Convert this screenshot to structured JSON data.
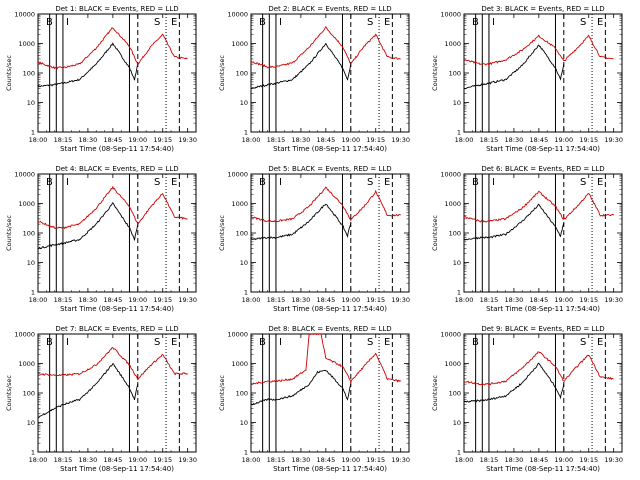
{
  "figure": {
    "ylabel": "Counts/sec",
    "xlabel": "Start Time (08-Sep-11 17:54:40)",
    "x_ticks": [
      "18:00",
      "18:15",
      "18:30",
      "18:45",
      "19:00",
      "19:15",
      "19:30"
    ],
    "y_ticks": [
      "1",
      "10",
      "100",
      "1000",
      "10000"
    ],
    "markers": [
      "B",
      "I",
      "S",
      "E"
    ],
    "colors": {
      "events": "#000000",
      "lld": "#cc0000",
      "background": "#ffffff"
    }
  },
  "chart_data": [
    {
      "type": "line",
      "title": "Det 1: BLACK = Events, RED = LLD",
      "xlim": [
        "18:00",
        "19:35"
      ],
      "ylim": [
        1,
        10000
      ],
      "yscale": "log",
      "series": [
        {
          "name": "BLACK = Events",
          "x": [
            "18:00",
            "18:10",
            "18:15",
            "18:25",
            "18:35",
            "18:45",
            "18:55",
            "18:58",
            "19:00"
          ],
          "values": [
            35,
            40,
            45,
            60,
            200,
            1000,
            150,
            60,
            200
          ]
        },
        {
          "name": "RED = LLD",
          "x": [
            "18:00",
            "18:10",
            "18:15",
            "18:25",
            "18:35",
            "18:45",
            "18:55",
            "19:00",
            "19:08",
            "19:15",
            "19:22",
            "19:30"
          ],
          "values": [
            230,
            150,
            150,
            200,
            700,
            3500,
            800,
            200,
            800,
            2000,
            350,
            300
          ]
        }
      ],
      "vlines_solid": [
        "18:07",
        "18:11",
        "18:15",
        "18:55"
      ],
      "vlines_dashed": [
        "19:00",
        "19:25"
      ],
      "vlines_dotted": [
        "19:17"
      ]
    },
    {
      "type": "line",
      "title": "Det 2: BLACK = Events, RED = LLD",
      "xlim": [
        "18:00",
        "19:35"
      ],
      "ylim": [
        1,
        10000
      ],
      "yscale": "log",
      "series": [
        {
          "name": "BLACK = Events",
          "x": [
            "18:00",
            "18:10",
            "18:15",
            "18:25",
            "18:35",
            "18:45",
            "18:55",
            "18:58",
            "19:00"
          ],
          "values": [
            30,
            40,
            45,
            60,
            200,
            1000,
            150,
            60,
            200
          ]
        },
        {
          "name": "RED = LLD",
          "x": [
            "18:00",
            "18:10",
            "18:15",
            "18:25",
            "18:35",
            "18:45",
            "18:55",
            "19:00",
            "19:08",
            "19:15",
            "19:22",
            "19:30"
          ],
          "values": [
            250,
            160,
            160,
            220,
            750,
            3500,
            800,
            200,
            800,
            2000,
            350,
            300
          ]
        }
      ],
      "vlines_solid": [
        "18:07",
        "18:11",
        "18:15",
        "18:55"
      ],
      "vlines_dashed": [
        "19:00",
        "19:25"
      ],
      "vlines_dotted": [
        "19:17"
      ]
    },
    {
      "type": "line",
      "title": "Det 3: BLACK = Events, RED = LLD",
      "xlim": [
        "18:00",
        "19:35"
      ],
      "ylim": [
        1,
        10000
      ],
      "yscale": "log",
      "series": [
        {
          "name": "BLACK = Events",
          "x": [
            "18:00",
            "18:10",
            "18:15",
            "18:25",
            "18:35",
            "18:45",
            "18:55",
            "18:58",
            "19:00"
          ],
          "values": [
            30,
            40,
            45,
            60,
            180,
            900,
            150,
            60,
            200
          ]
        },
        {
          "name": "RED = LLD",
          "x": [
            "18:00",
            "18:10",
            "18:15",
            "18:25",
            "18:35",
            "18:45",
            "18:55",
            "19:00",
            "19:08",
            "19:15",
            "19:22",
            "19:30"
          ],
          "values": [
            280,
            200,
            200,
            280,
            600,
            1800,
            700,
            250,
            700,
            1800,
            350,
            300
          ]
        }
      ],
      "vlines_solid": [
        "18:07",
        "18:11",
        "18:15",
        "18:55"
      ],
      "vlines_dashed": [
        "19:00",
        "19:25"
      ],
      "vlines_dotted": [
        "19:17"
      ]
    },
    {
      "type": "line",
      "title": "Det 4: BLACK = Events, RED = LLD",
      "xlim": [
        "18:00",
        "19:35"
      ],
      "ylim": [
        1,
        10000
      ],
      "yscale": "log",
      "series": [
        {
          "name": "BLACK = Events",
          "x": [
            "18:00",
            "18:10",
            "18:15",
            "18:25",
            "18:35",
            "18:45",
            "18:55",
            "18:58",
            "19:00"
          ],
          "values": [
            30,
            40,
            45,
            60,
            200,
            1000,
            150,
            60,
            200
          ]
        },
        {
          "name": "RED = LLD",
          "x": [
            "18:00",
            "18:10",
            "18:15",
            "18:25",
            "18:35",
            "18:45",
            "18:55",
            "19:00",
            "19:08",
            "19:15",
            "19:22",
            "19:30"
          ],
          "values": [
            250,
            150,
            150,
            200,
            700,
            3500,
            800,
            200,
            800,
            2200,
            350,
            300
          ]
        }
      ],
      "vlines_solid": [
        "18:07",
        "18:11",
        "18:15",
        "18:55"
      ],
      "vlines_dashed": [
        "19:00",
        "19:25"
      ],
      "vlines_dotted": [
        "19:17"
      ]
    },
    {
      "type": "line",
      "title": "Det 5: BLACK = Events, RED = LLD",
      "xlim": [
        "18:00",
        "19:35"
      ],
      "ylim": [
        1,
        10000
      ],
      "yscale": "log",
      "series": [
        {
          "name": "BLACK = Events",
          "x": [
            "18:00",
            "18:10",
            "18:15",
            "18:25",
            "18:35",
            "18:45",
            "18:55",
            "18:58",
            "19:00"
          ],
          "values": [
            60,
            70,
            70,
            90,
            250,
            1000,
            180,
            80,
            220
          ]
        },
        {
          "name": "RED = LLD",
          "x": [
            "18:00",
            "18:10",
            "18:15",
            "18:25",
            "18:35",
            "18:45",
            "18:55",
            "19:00",
            "19:08",
            "19:15",
            "19:22",
            "19:30"
          ],
          "values": [
            350,
            250,
            250,
            300,
            800,
            3500,
            900,
            280,
            800,
            2500,
            400,
            400
          ]
        }
      ],
      "vlines_solid": [
        "18:07",
        "18:11",
        "18:15",
        "18:55"
      ],
      "vlines_dashed": [
        "19:00",
        "19:25"
      ],
      "vlines_dotted": [
        "19:17"
      ]
    },
    {
      "type": "line",
      "title": "Det 6: BLACK = Events, RED = LLD",
      "xlim": [
        "18:00",
        "19:35"
      ],
      "ylim": [
        1,
        10000
      ],
      "yscale": "log",
      "series": [
        {
          "name": "BLACK = Events",
          "x": [
            "18:00",
            "18:10",
            "18:15",
            "18:25",
            "18:35",
            "18:45",
            "18:55",
            "18:58",
            "19:00"
          ],
          "values": [
            60,
            70,
            70,
            90,
            250,
            900,
            160,
            80,
            220
          ]
        },
        {
          "name": "RED = LLD",
          "x": [
            "18:00",
            "18:10",
            "18:15",
            "18:25",
            "18:35",
            "18:45",
            "18:55",
            "19:00",
            "19:08",
            "19:15",
            "19:22",
            "19:30"
          ],
          "values": [
            350,
            250,
            250,
            300,
            700,
            2500,
            800,
            280,
            800,
            2200,
            400,
            400
          ]
        }
      ],
      "vlines_solid": [
        "18:07",
        "18:11",
        "18:15",
        "18:55"
      ],
      "vlines_dashed": [
        "19:00",
        "19:25"
      ],
      "vlines_dotted": [
        "19:17"
      ]
    },
    {
      "type": "line",
      "title": "Det 7: BLACK = Events, RED = LLD",
      "xlim": [
        "18:00",
        "19:35"
      ],
      "ylim": [
        1,
        10000
      ],
      "yscale": "log",
      "series": [
        {
          "name": "BLACK = Events",
          "x": [
            "18:00",
            "18:10",
            "18:15",
            "18:25",
            "18:35",
            "18:45",
            "18:55",
            "18:58",
            "19:00"
          ],
          "values": [
            15,
            30,
            40,
            60,
            200,
            1000,
            150,
            60,
            200
          ]
        },
        {
          "name": "RED = LLD",
          "x": [
            "18:00",
            "18:10",
            "18:15",
            "18:25",
            "18:35",
            "18:45",
            "18:55",
            "19:00",
            "19:08",
            "19:15",
            "19:22",
            "19:30"
          ],
          "values": [
            450,
            400,
            400,
            450,
            900,
            3500,
            900,
            300,
            900,
            2000,
            450,
            450
          ]
        }
      ],
      "vlines_solid": [
        "18:07",
        "18:11",
        "18:15",
        "18:55"
      ],
      "vlines_dashed": [
        "19:00",
        "19:25"
      ],
      "vlines_dotted": [
        "19:17"
      ]
    },
    {
      "type": "line",
      "title": "Det 8: BLACK = Events, RED = LLD",
      "xlim": [
        "18:00",
        "19:35"
      ],
      "ylim": [
        1,
        10000
      ],
      "yscale": "log",
      "series": [
        {
          "name": "BLACK = Events",
          "x": [
            "18:00",
            "18:10",
            "18:15",
            "18:25",
            "18:35",
            "18:40",
            "18:45",
            "18:55",
            "18:58",
            "19:00"
          ],
          "values": [
            40,
            60,
            60,
            80,
            200,
            500,
            600,
            150,
            60,
            200
          ]
        },
        {
          "name": "RED = LLD",
          "x": [
            "18:00",
            "18:10",
            "18:15",
            "18:25",
            "18:33",
            "18:35",
            "18:42",
            "18:45",
            "18:55",
            "19:00",
            "19:08",
            "19:15",
            "19:22",
            "19:30"
          ],
          "values": [
            200,
            250,
            250,
            300,
            600,
            10000,
            10000,
            1500,
            800,
            250,
            800,
            2200,
            300,
            250
          ]
        }
      ],
      "vlines_solid": [
        "18:07",
        "18:11",
        "18:15",
        "18:55"
      ],
      "vlines_dashed": [
        "19:00",
        "19:25"
      ],
      "vlines_dotted": [
        "19:17"
      ]
    },
    {
      "type": "line",
      "title": "Det 9: BLACK = Events, RED = LLD",
      "xlim": [
        "18:00",
        "19:35"
      ],
      "ylim": [
        1,
        10000
      ],
      "yscale": "log",
      "series": [
        {
          "name": "BLACK = Events",
          "x": [
            "18:00",
            "18:10",
            "18:15",
            "18:25",
            "18:35",
            "18:45",
            "18:55",
            "18:58",
            "19:00"
          ],
          "values": [
            50,
            55,
            60,
            80,
            220,
            1000,
            160,
            70,
            200
          ]
        },
        {
          "name": "RED = LLD",
          "x": [
            "18:00",
            "18:10",
            "18:15",
            "18:25",
            "18:35",
            "18:45",
            "18:55",
            "19:00",
            "19:08",
            "19:15",
            "19:22",
            "19:30"
          ],
          "values": [
            250,
            200,
            200,
            250,
            700,
            2500,
            800,
            250,
            800,
            2000,
            350,
            300
          ]
        }
      ],
      "vlines_solid": [
        "18:07",
        "18:11",
        "18:15",
        "18:55"
      ],
      "vlines_dashed": [
        "19:00",
        "19:25"
      ],
      "vlines_dotted": [
        "19:17"
      ]
    }
  ]
}
